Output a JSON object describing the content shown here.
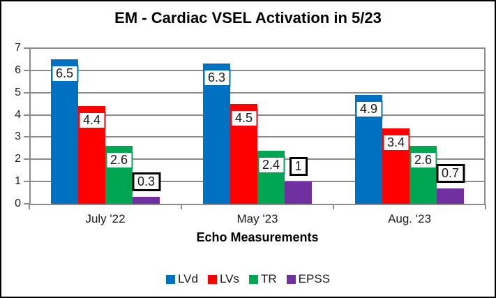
{
  "chart_data": {
    "type": "bar",
    "title": "EM - Cardiac VSEL Activation in 5/23",
    "xlabel": "Echo Measurements",
    "ylabel": "",
    "categories": [
      "July '22",
      "May '23",
      "Aug. '23"
    ],
    "series": [
      {
        "name": "LVd",
        "color": "#0070C0",
        "values": [
          6.5,
          6.3,
          4.9
        ],
        "labels": [
          "6.5",
          "6.3",
          "4.9"
        ],
        "label_style": "inside-end"
      },
      {
        "name": "LVs",
        "color": "#FF0000",
        "values": [
          4.4,
          4.5,
          3.4
        ],
        "labels": [
          "4.4",
          "4.5",
          "3.4"
        ],
        "label_style": "inside-end"
      },
      {
        "name": "TR",
        "color": "#00A651",
        "values": [
          2.6,
          2.4,
          2.6
        ],
        "labels": [
          "2.6",
          "2.4",
          "2.6"
        ],
        "label_style": "inside-end"
      },
      {
        "name": "EPSS",
        "color": "#7030A0",
        "values": [
          0.3,
          1,
          0.7
        ],
        "labels": [
          "0.3",
          "1",
          "0.7"
        ],
        "label_style": "outside-end",
        "label_border": "#000000"
      }
    ],
    "ylim": [
      0,
      7
    ],
    "yticks": [
      0,
      1,
      2,
      3,
      4,
      5,
      6,
      7
    ],
    "grid": true,
    "legend_position": "bottom",
    "axis_color": "#8C8C8C",
    "gridline_color": "#8C8C8C",
    "data_label_fill": "#FFFFFF",
    "frame_border_color": "#000000"
  }
}
